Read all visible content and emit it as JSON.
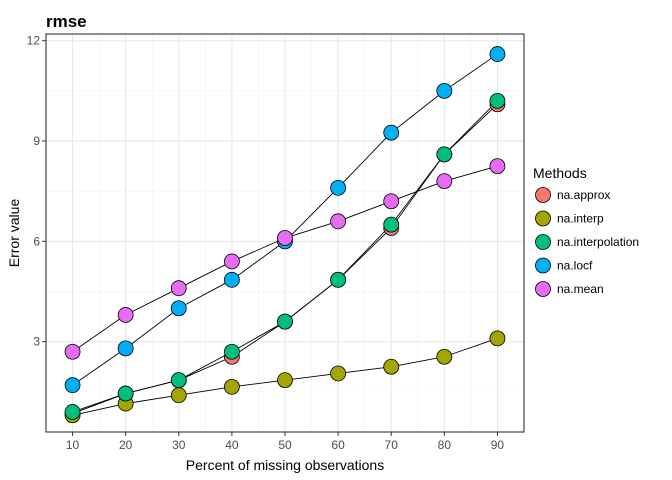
{
  "chart_data": {
    "type": "line",
    "title": "rmse",
    "xlabel": "Percent of missing observations",
    "ylabel": "Error value",
    "x": [
      10,
      20,
      30,
      40,
      50,
      60,
      70,
      80,
      90
    ],
    "xlim": [
      5,
      95
    ],
    "ylim": [
      0.3,
      12.2
    ],
    "xticks": [
      "10",
      "20",
      "30",
      "40",
      "50",
      "60",
      "70",
      "80",
      "90"
    ],
    "yticks": [
      "3",
      "6",
      "9",
      "12"
    ],
    "grid": true,
    "legend": {
      "title": "Methods",
      "position": "right"
    },
    "series": [
      {
        "name": "na.approx",
        "color": "#F8766D",
        "values": [
          0.85,
          1.45,
          1.85,
          2.55,
          3.6,
          4.85,
          6.4,
          8.6,
          10.1
        ]
      },
      {
        "name": "na.interp",
        "color": "#A3A500",
        "values": [
          0.8,
          1.15,
          1.4,
          1.65,
          1.85,
          2.05,
          2.25,
          2.55,
          3.1
        ]
      },
      {
        "name": "na.interpolation",
        "color": "#00BF7D",
        "values": [
          0.9,
          1.45,
          1.85,
          2.7,
          3.6,
          4.85,
          6.5,
          8.6,
          10.2
        ]
      },
      {
        "name": "na.locf",
        "color": "#00B0F6",
        "values": [
          1.7,
          2.8,
          4.0,
          4.85,
          6.0,
          7.6,
          9.25,
          10.5,
          11.6
        ]
      },
      {
        "name": "na.mean",
        "color": "#E76BF3",
        "values": [
          2.7,
          3.8,
          4.6,
          5.4,
          6.1,
          6.6,
          7.2,
          7.8,
          8.25
        ]
      }
    ]
  }
}
